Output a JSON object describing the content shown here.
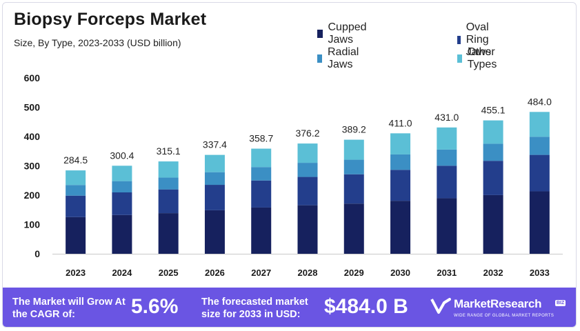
{
  "header": {
    "title": "Biopsy Forceps Market",
    "subtitle": "Size, By Type, 2023-2033 (USD billion)"
  },
  "legend": [
    {
      "label": "Cupped Jaws",
      "color": "#16215e"
    },
    {
      "label": "Oval Ring Jaws",
      "color": "#233e8c"
    },
    {
      "label": "Radial Jaws",
      "color": "#3b8fc4"
    },
    {
      "label": "Other Types",
      "color": "#5bbfd6"
    }
  ],
  "footer": {
    "cagr_label": "The Market will Grow At the CAGR of:",
    "cagr_value": "5.6%",
    "forecast_label": "The forecasted market size for 2033 in USD:",
    "forecast_value": "$484.0 B",
    "logo_name": "MarketResearch",
    "logo_badge": "BIZ",
    "logo_tagline": "WIDE RANGE OF GLOBAL MARKET REPORTS"
  },
  "chart_data": {
    "type": "bar",
    "stacked": true,
    "title": "Biopsy Forceps Market",
    "subtitle": "Size, By Type, 2023-2033 (USD billion)",
    "xlabel": "",
    "ylabel": "",
    "ylim": [
      0,
      600
    ],
    "yticks": [
      0,
      100,
      200,
      300,
      400,
      500,
      600
    ],
    "grid": false,
    "legend_position": "top-right",
    "categories": [
      "2023",
      "2024",
      "2025",
      "2026",
      "2027",
      "2028",
      "2029",
      "2030",
      "2031",
      "2032",
      "2033"
    ],
    "totals": [
      284.5,
      300.4,
      315.1,
      337.4,
      358.7,
      376.2,
      389.2,
      411.0,
      431.0,
      455.1,
      484.0
    ],
    "total_labels": [
      "284.5",
      "300.4",
      "315.1",
      "337.4",
      "358.7",
      "376.2",
      "389.2",
      "411.0",
      "431.0",
      "455.1",
      "484.0"
    ],
    "series": [
      {
        "name": "Cupped Jaws",
        "color": "#16215e",
        "values": [
          125.2,
          132.2,
          138.6,
          148.5,
          157.8,
          165.5,
          171.2,
          180.8,
          189.6,
          200.2,
          213.0
        ]
      },
      {
        "name": "Oval Ring Jaws",
        "color": "#233e8c",
        "values": [
          73.1,
          77.2,
          81.0,
          86.7,
          92.2,
          96.7,
          100.0,
          105.6,
          110.8,
          117.0,
          124.4
        ]
      },
      {
        "name": "Radial Jaws",
        "color": "#3b8fc4",
        "values": [
          36.4,
          38.5,
          40.3,
          43.2,
          45.9,
          48.2,
          49.8,
          52.6,
          55.2,
          58.3,
          62.0
        ]
      },
      {
        "name": "Other Types",
        "color": "#5bbfd6",
        "values": [
          49.8,
          52.5,
          55.2,
          59.0,
          62.8,
          65.8,
          68.2,
          72.0,
          75.4,
          79.6,
          84.6
        ]
      }
    ]
  }
}
